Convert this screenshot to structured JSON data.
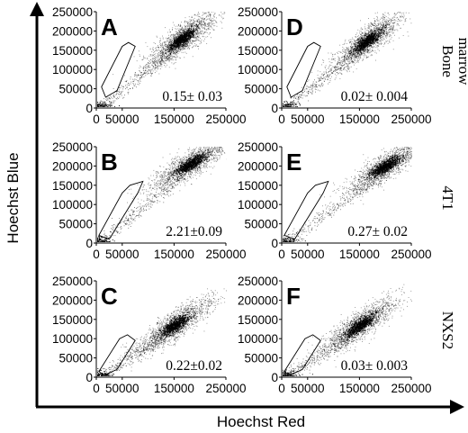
{
  "chart_data": [
    {
      "type": "scatter",
      "panel": "A",
      "row_label": [
        "Bone",
        "marrow"
      ],
      "annotation": "0.15± 0.03",
      "xlabel": "Hoechst Red",
      "ylabel": "Hoechst Blue",
      "xlim": [
        0,
        250000
      ],
      "ylim": [
        0,
        250000
      ],
      "xticks": [
        "0",
        "50000",
        "150000",
        "250000"
      ],
      "yticks": [
        "0",
        "50000",
        "100000",
        "150000",
        "200000",
        "250000"
      ],
      "main_population": {
        "x_center": 165000,
        "y_center": 180000,
        "slope": 1.1
      },
      "side_population_gate": [
        [
          10000,
          55000
        ],
        [
          50000,
          160000
        ],
        [
          62000,
          170000
        ],
        [
          75000,
          160000
        ],
        [
          40000,
          45000
        ],
        [
          18000,
          28000
        ]
      ]
    },
    {
      "type": "scatter",
      "panel": "D",
      "row_label": [
        "Bone",
        "marrow"
      ],
      "annotation": "0.02± 0.004",
      "xlabel": "Hoechst Red",
      "ylabel": "Hoechst Blue",
      "xlim": [
        0,
        250000
      ],
      "ylim": [
        0,
        250000
      ],
      "xticks": [
        "0",
        "50000",
        "150000",
        "250000"
      ],
      "yticks": [
        "0",
        "50000",
        "100000",
        "150000",
        "200000",
        "250000"
      ],
      "main_population": {
        "x_center": 165000,
        "y_center": 175000,
        "slope": 1.1
      },
      "side_population_gate": [
        [
          10000,
          55000
        ],
        [
          50000,
          160000
        ],
        [
          62000,
          170000
        ],
        [
          75000,
          160000
        ],
        [
          40000,
          45000
        ],
        [
          18000,
          28000
        ]
      ]
    },
    {
      "type": "scatter",
      "panel": "B",
      "row_label": [
        "4T1"
      ],
      "annotation": "2.21±0.09",
      "xlabel": "Hoechst Red",
      "ylabel": "Hoechst Blue",
      "xlim": [
        0,
        250000
      ],
      "ylim": [
        0,
        250000
      ],
      "xticks": [
        "0",
        "50000",
        "150000",
        "250000"
      ],
      "yticks": [
        "0",
        "50000",
        "100000",
        "150000",
        "200000",
        "250000"
      ],
      "main_population": {
        "x_center": 180000,
        "y_center": 205000,
        "slope": 0.9
      },
      "side_population_gate": [
        [
          5000,
          20000
        ],
        [
          50000,
          130000
        ],
        [
          65000,
          150000
        ],
        [
          90000,
          160000
        ],
        [
          80000,
          130000
        ],
        [
          25000,
          10000
        ]
      ]
    },
    {
      "type": "scatter",
      "panel": "E",
      "row_label": [
        "4T1"
      ],
      "annotation": "0.27± 0.02",
      "xlabel": "Hoechst Red",
      "ylabel": "Hoechst Blue",
      "xlim": [
        0,
        250000
      ],
      "ylim": [
        0,
        250000
      ],
      "xticks": [
        "0",
        "50000",
        "150000",
        "250000"
      ],
      "yticks": [
        "0",
        "50000",
        "100000",
        "150000",
        "200000",
        "250000"
      ],
      "main_population": {
        "x_center": 200000,
        "y_center": 200000,
        "slope": 0.9
      },
      "side_population_gate": [
        [
          5000,
          20000
        ],
        [
          50000,
          130000
        ],
        [
          65000,
          150000
        ],
        [
          90000,
          160000
        ],
        [
          80000,
          130000
        ],
        [
          25000,
          10000
        ]
      ]
    },
    {
      "type": "scatter",
      "panel": "C",
      "row_label": [
        "NXS2"
      ],
      "annotation": "0.22±0.02",
      "xlabel": "Hoechst Red",
      "ylabel": "Hoechst Blue",
      "xlim": [
        0,
        250000
      ],
      "ylim": [
        0,
        250000
      ],
      "xticks": [
        "0",
        "50000",
        "150000",
        "250000"
      ],
      "yticks": [
        "0",
        "50000",
        "100000",
        "150000",
        "200000",
        "250000"
      ],
      "main_population": {
        "x_center": 150000,
        "y_center": 135000,
        "slope": 1.0
      },
      "side_population_gate": [
        [
          5000,
          15000
        ],
        [
          45000,
          100000
        ],
        [
          60000,
          110000
        ],
        [
          75000,
          95000
        ],
        [
          40000,
          20000
        ],
        [
          15000,
          5000
        ]
      ]
    },
    {
      "type": "scatter",
      "panel": "F",
      "row_label": [
        "NXS2"
      ],
      "annotation": "0.03± 0.003",
      "xlabel": "Hoechst Red",
      "ylabel": "Hoechst Blue",
      "xlim": [
        0,
        250000
      ],
      "ylim": [
        0,
        250000
      ],
      "xticks": [
        "0",
        "50000",
        "150000",
        "250000"
      ],
      "yticks": [
        "0",
        "50000",
        "100000",
        "150000",
        "200000",
        "250000"
      ],
      "main_population": {
        "x_center": 150000,
        "y_center": 135000,
        "slope": 1.0
      },
      "side_population_gate": [
        [
          5000,
          15000
        ],
        [
          45000,
          100000
        ],
        [
          60000,
          110000
        ],
        [
          75000,
          95000
        ],
        [
          40000,
          20000
        ],
        [
          15000,
          5000
        ]
      ]
    }
  ],
  "axes": {
    "x_title": "Hoechst Red",
    "y_title": "Hoechst Blue"
  },
  "colors": {
    "dot": "#000000",
    "gate": "#000000",
    "background": "#ffffff"
  }
}
